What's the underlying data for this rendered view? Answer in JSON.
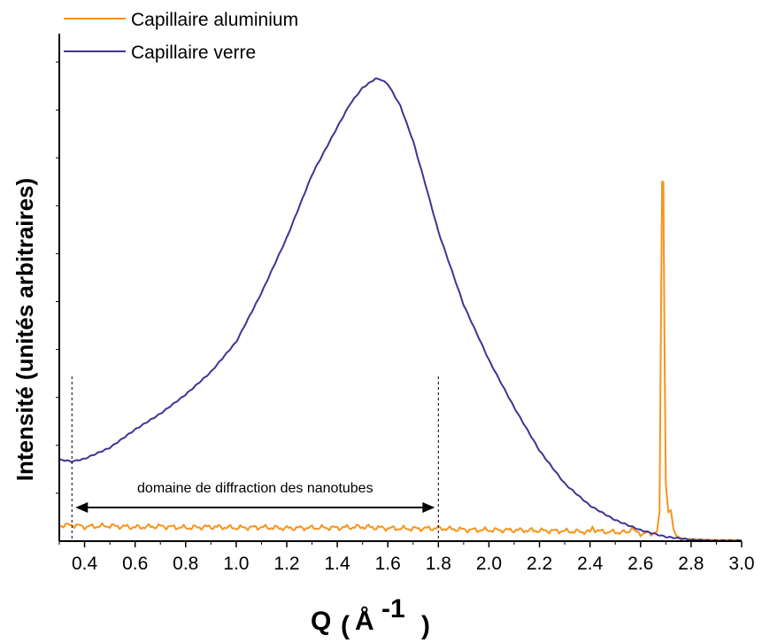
{
  "chart_data": {
    "type": "line",
    "xlabel": {
      "main": "Q",
      "open": "(",
      "unit": "Å",
      "exp": "-1",
      "close": ")"
    },
    "ylabel": "Intensité (unités arbitraires)",
    "xlim": [
      0.3,
      3.0
    ],
    "ylim": [
      0,
      100
    ],
    "x_ticks": [
      0.4,
      0.6,
      0.8,
      1.0,
      1.2,
      1.4,
      1.6,
      1.8,
      2.0,
      2.2,
      2.4,
      2.6,
      2.8,
      3.0
    ],
    "x_tick_labels": [
      "0.4",
      "0.6",
      "0.8",
      "1.0",
      "1.2",
      "1.4",
      "1.6",
      "1.8",
      "2.0",
      "2.2",
      "2.4",
      "2.6",
      "2.8",
      "3.0"
    ],
    "grid": false,
    "legend_position": "top-left",
    "series": [
      {
        "name": "Capillaire aluminium",
        "color": "#f7941d",
        "x": [
          0.3,
          0.35,
          0.4,
          0.5,
          0.6,
          0.7,
          0.8,
          0.9,
          1.0,
          1.1,
          1.2,
          1.3,
          1.4,
          1.5,
          1.6,
          1.7,
          1.8,
          1.9,
          2.0,
          2.1,
          2.2,
          2.3,
          2.4,
          2.41,
          2.42,
          2.43,
          2.45,
          2.5,
          2.55,
          2.565,
          2.575,
          2.6,
          2.65,
          2.665,
          2.675,
          2.68,
          2.685,
          2.69,
          2.695,
          2.7,
          2.71,
          2.72,
          2.73,
          2.74,
          2.76,
          2.8,
          2.85,
          2.9,
          3.0
        ],
        "y": [
          3.2,
          3.4,
          3.0,
          3.2,
          2.9,
          3.1,
          2.8,
          3.0,
          2.8,
          2.9,
          2.7,
          2.8,
          2.8,
          3.0,
          2.7,
          2.6,
          2.7,
          2.4,
          2.3,
          2.3,
          2.2,
          2.1,
          1.9,
          2.9,
          2.4,
          2.1,
          2.0,
          1.9,
          1.8,
          3.0,
          2.0,
          1.6,
          1.6,
          2.0,
          6.0,
          40.0,
          75.0,
          75.0,
          40.0,
          12.0,
          6.0,
          6.5,
          2.6,
          1.2,
          0.6,
          0.4,
          0.3,
          0.25,
          0.2
        ]
      },
      {
        "name": "Capillaire verre",
        "color": "#3f3593",
        "x": [
          0.3,
          0.33,
          0.35,
          0.4,
          0.5,
          0.6,
          0.7,
          0.8,
          0.9,
          1.0,
          1.1,
          1.2,
          1.3,
          1.4,
          1.45,
          1.5,
          1.55,
          1.57,
          1.6,
          1.65,
          1.7,
          1.75,
          1.8,
          1.9,
          2.0,
          2.1,
          2.2,
          2.3,
          2.4,
          2.5,
          2.6,
          2.7,
          2.8,
          2.9,
          3.0
        ],
        "y": [
          17.0,
          16.8,
          16.6,
          17.2,
          19.5,
          23.3,
          26.6,
          30.6,
          35.3,
          41.6,
          51.8,
          63.3,
          76.5,
          86.4,
          91.2,
          94.6,
          96.5,
          96.4,
          95.4,
          90.8,
          83.5,
          74.2,
          64.6,
          49.3,
          37.8,
          27.9,
          18.9,
          12.0,
          7.4,
          4.4,
          2.3,
          0.9,
          0.3,
          0.1,
          0.1
        ]
      }
    ],
    "annotations": [
      {
        "text": "domaine de diffraction des nanotubes",
        "x_start": 0.35,
        "x_end": 1.8
      }
    ]
  }
}
